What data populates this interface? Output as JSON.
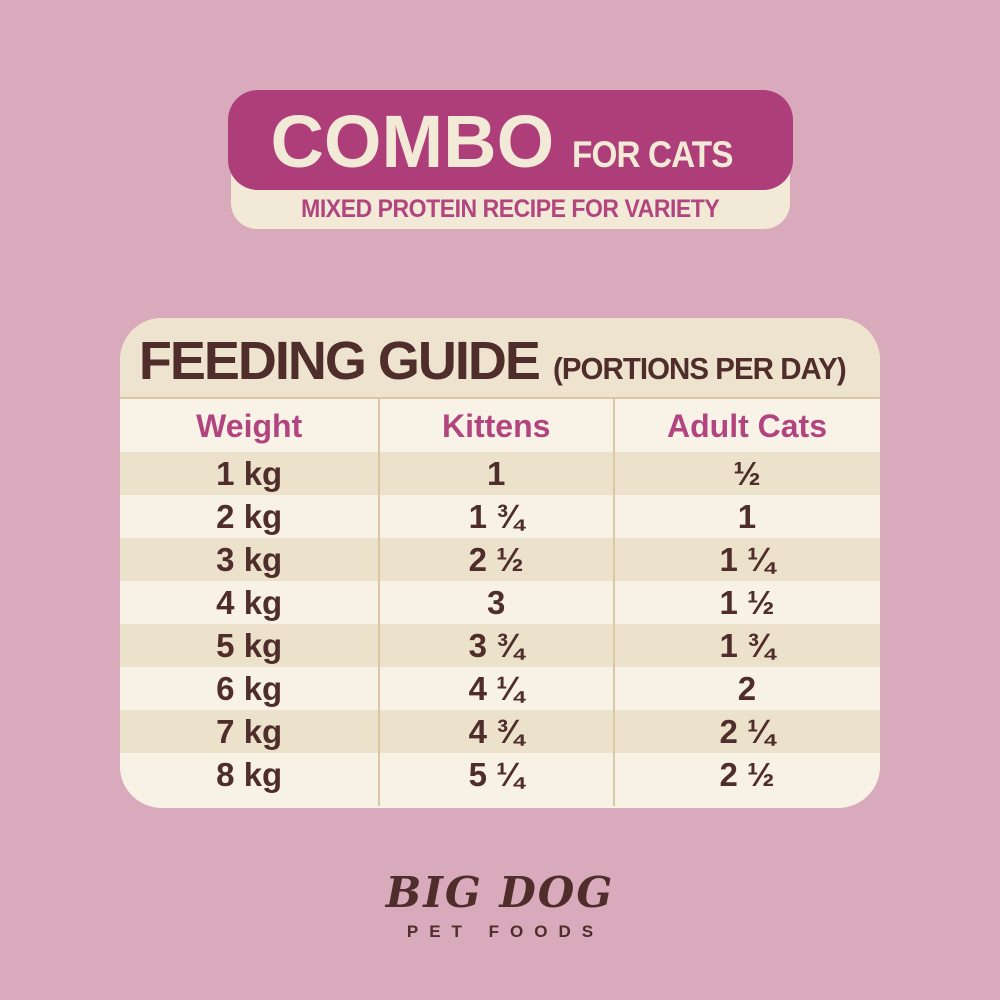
{
  "colors": {
    "background_pink": "#d8aabc",
    "banner_magenta": "#ad3e7a",
    "accent_magenta_text": "#b2457f",
    "cream_light": "#f8f2e6",
    "cream_strip": "#f2e9d6",
    "beige_stripe": "#ece1cb",
    "title_beige": "#eee3ce",
    "divider_tan": "#d9c8a6",
    "dark_brown_text": "#4f2d2a"
  },
  "banner": {
    "title": "COMBO",
    "subtitle": "FOR CATS",
    "tagline": "MIXED PROTEIN RECIPE FOR VARIETY"
  },
  "guide": {
    "title": "FEEDING GUIDE",
    "suffix": "(PORTIONS PER DAY)"
  },
  "chart_data": {
    "type": "table",
    "title": "FEEDING GUIDE (PORTIONS PER DAY)",
    "columns": [
      "Weight",
      "Kittens",
      "Adult Cats"
    ],
    "rows": [
      [
        "1 kg",
        "1",
        "½"
      ],
      [
        "2 kg",
        "1 ¾",
        "1"
      ],
      [
        "3 kg",
        "2 ½",
        "1 ¼"
      ],
      [
        "4 kg",
        "3",
        "1 ½"
      ],
      [
        "5 kg",
        "3 ¾",
        "1 ¾"
      ],
      [
        "6 kg",
        "4 ¼",
        "2"
      ],
      [
        "7 kg",
        "4 ¾",
        "2 ¼"
      ],
      [
        "8 kg",
        "5 ¼",
        "2 ½"
      ]
    ]
  },
  "logo": {
    "name": "BIG DOG",
    "subtitle": "PET FOODS"
  }
}
